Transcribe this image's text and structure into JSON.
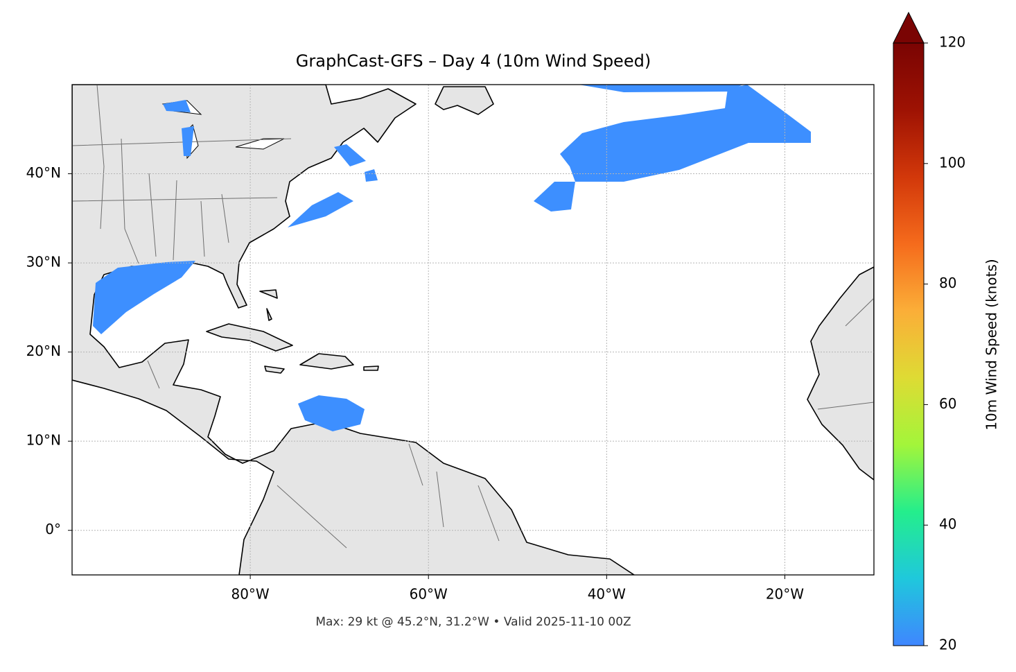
{
  "title": "GraphCast-GFS – Day 4 (10m Wind Speed)",
  "footer": "Max: 29 kt @ 45.2°N, 31.2°W • Valid 2025-11-10 00Z",
  "map": {
    "xlim": [
      -100,
      -10
    ],
    "ylim": [
      -5,
      50
    ],
    "grid": true,
    "xticks": [
      {
        "value": -80,
        "label": "80°W"
      },
      {
        "value": -60,
        "label": "60°W"
      },
      {
        "value": -40,
        "label": "40°W"
      },
      {
        "value": -20,
        "label": "20°W"
      }
    ],
    "yticks": [
      {
        "value": 0,
        "label": "0°"
      },
      {
        "value": 10,
        "label": "10°N"
      },
      {
        "value": 20,
        "label": "20°N"
      },
      {
        "value": 30,
        "label": "30°N"
      },
      {
        "value": 40,
        "label": "40°N"
      }
    ]
  },
  "colorbar": {
    "label": "10m Wind Speed (knots)",
    "lim": [
      20,
      120
    ],
    "ticks": [
      20,
      40,
      60,
      80,
      100,
      120
    ],
    "colors": [
      "#3f86ff",
      "#1fc8dc",
      "#24ee8c",
      "#a3f53a",
      "#dedb34",
      "#fbae38",
      "#f56b1c",
      "#d2380a",
      "#9e1203",
      "#7a0403"
    ]
  }
}
